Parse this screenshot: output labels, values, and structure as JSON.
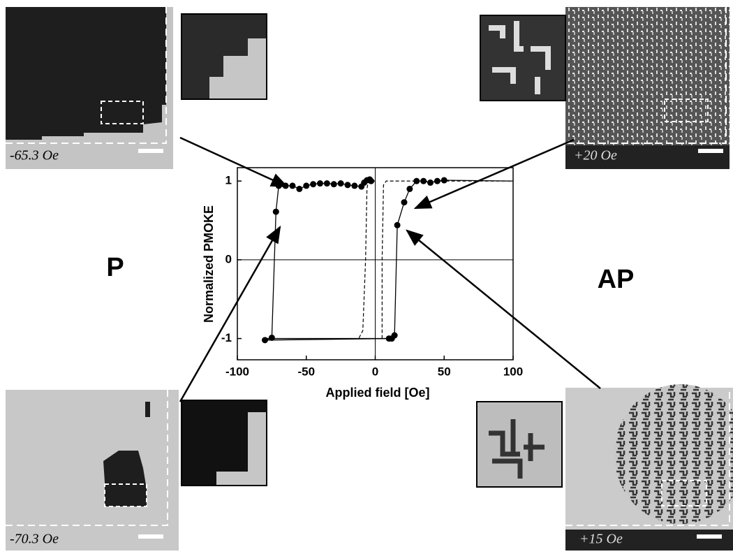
{
  "chart_data": {
    "type": "line",
    "x_label": "Applied field [Oe]",
    "y_label": "Normalized PMOKE",
    "xlim": [
      -100,
      100
    ],
    "ylim": [
      -1.27,
      1.17
    ],
    "xticks": [
      -100,
      -50,
      0,
      50,
      100
    ],
    "yticks": [
      -1,
      0,
      1
    ],
    "series": [
      {
        "color": "#000000",
        "markers": true,
        "dashed": false,
        "x": [
          -3,
          -4,
          -6,
          -8,
          -10,
          -15,
          -20,
          -25,
          -30,
          -35,
          -40,
          -45,
          -50,
          -55,
          -60,
          -65,
          -70,
          -72,
          -75,
          -80,
          10,
          12,
          14,
          16,
          21,
          25,
          30,
          35,
          40,
          45,
          50
        ],
        "values": [
          1.0,
          1.02,
          1.01,
          0.98,
          0.93,
          0.94,
          0.95,
          0.97,
          0.96,
          0.97,
          0.97,
          0.96,
          0.94,
          0.9,
          0.94,
          0.94,
          0.94,
          0.61,
          -0.99,
          -1.02,
          -1.0,
          -1.0,
          -0.96,
          0.44,
          0.73,
          0.9,
          1.0,
          1.0,
          0.98,
          1.0,
          1.01
        ]
      },
      {
        "color": "#000000",
        "markers": false,
        "dashed": false,
        "x": [
          50,
          100,
          null,
          -80,
          10
        ],
        "values": [
          1.01,
          1.0,
          null,
          -1.0,
          -1.0
        ]
      },
      {
        "color": "#000000",
        "markers": false,
        "dashed": true,
        "x": [
          -48,
          -12,
          -9,
          -7,
          -6,
          -5,
          0,
          null,
          5,
          5,
          6,
          8,
          100
        ],
        "values": [
          -1.0,
          -1.0,
          -0.9,
          0.0,
          0.9,
          1.0,
          1.0,
          null,
          -1.0,
          0.0,
          0.95,
          1.0,
          1.0
        ]
      }
    ]
  },
  "annotations": {
    "top_left": "-65.3 Oe",
    "top_right": "+20 Oe",
    "bottom_left": "-70.3 Oe",
    "bottom_right": "+15 Oe",
    "left_state": "P",
    "right_state": "AP"
  }
}
